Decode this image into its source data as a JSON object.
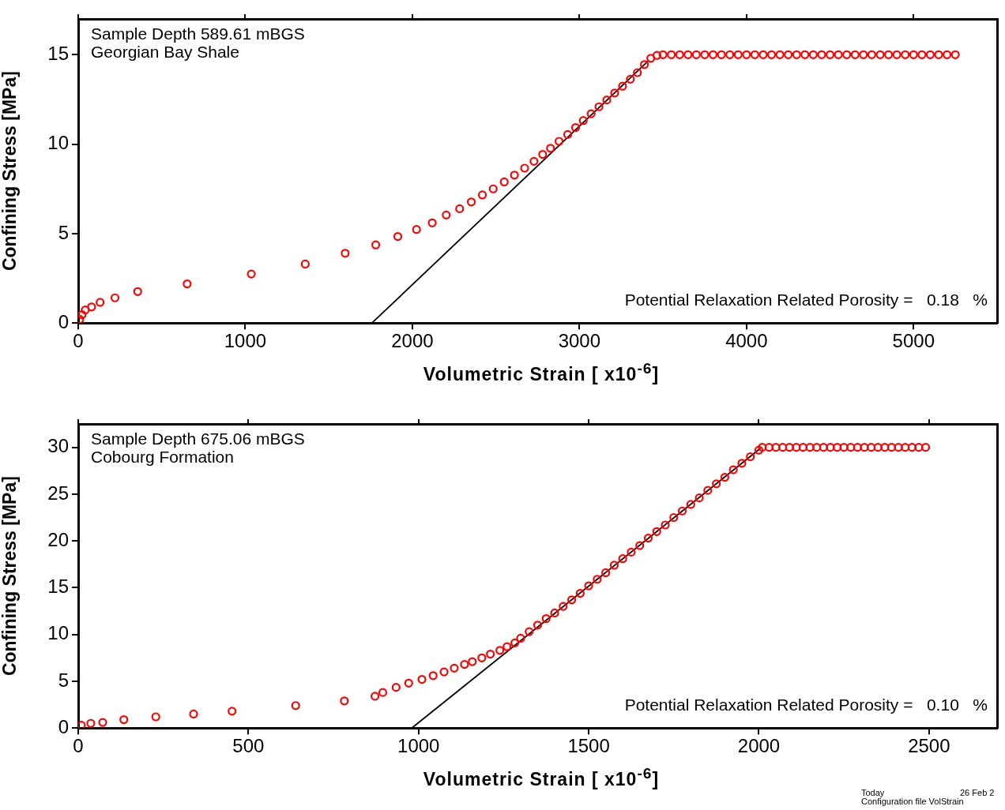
{
  "chart_data": [
    {
      "type": "scatter",
      "xlabel": "Volumetric Strain [ x10$^{-6}$]",
      "ylabel": "Confining Stress [MPa]",
      "xlim": [
        0,
        5500
      ],
      "ylim": [
        0,
        17
      ],
      "xticks": [
        0,
        1000,
        2000,
        3000,
        4000,
        5000
      ],
      "yticks": [
        0,
        5,
        10,
        15
      ],
      "grid": false,
      "annotations": [
        "Sample Depth 589.61 mBGS",
        "Georgian Bay Shale",
        "Potential Relaxation Related Porosity =   0.18   %"
      ],
      "series": [
        {
          "marker": "circle",
          "color": "#ff0000",
          "x": [
            9,
            23,
            42,
            80,
            131,
            220,
            356,
            652,
            1036,
            1359,
            1598,
            1781,
            1913,
            2025,
            2119,
            2203,
            2283,
            2353,
            2419,
            2484,
            2550,
            2611,
            2672,
            2728,
            2780,
            2827,
            2878,
            2930,
            2977,
            3023,
            3070,
            3117,
            3164,
            3211,
            3258,
            3305,
            3347,
            3389,
            3427,
            3464,
            3500,
            3550,
            3600,
            3650,
            3700,
            3750,
            3800,
            3850,
            3900,
            3950,
            4000,
            4050,
            4100,
            4150,
            4200,
            4250,
            4300,
            4350,
            4400,
            4450,
            4500,
            4550,
            4600,
            4650,
            4700,
            4750,
            4800,
            4850,
            4900,
            4950,
            5000,
            5050,
            5100,
            5150,
            5200,
            5250
          ],
          "values": [
            0.21,
            0.47,
            0.73,
            0.9,
            1.16,
            1.41,
            1.76,
            2.19,
            2.74,
            3.3,
            3.9,
            4.37,
            4.84,
            5.23,
            5.6,
            6.04,
            6.39,
            6.77,
            7.16,
            7.5,
            7.89,
            8.27,
            8.66,
            9.04,
            9.43,
            9.77,
            10.16,
            10.54,
            10.93,
            11.32,
            11.7,
            12.09,
            12.47,
            12.86,
            13.24,
            13.63,
            14.0,
            14.45,
            14.8,
            14.96,
            15,
            15,
            15,
            15,
            15,
            15,
            15,
            15,
            15,
            15,
            15,
            15,
            15,
            15,
            15,
            15,
            15,
            15,
            15,
            15,
            15,
            15,
            15,
            15,
            15,
            15,
            15,
            15,
            15,
            15,
            15,
            15,
            15,
            15,
            15,
            15
          ]
        },
        {
          "type": "line",
          "marker": "none",
          "color": "#000000",
          "x": [
            1758,
            3417
          ],
          "values": [
            0,
            14.7
          ]
        }
      ]
    },
    {
      "type": "scatter",
      "xlabel": "Volumetric Strain [ x10$^{-6}$]",
      "ylabel": "Confining Stress [MPa]",
      "xlim": [
        0,
        2700
      ],
      "ylim": [
        0,
        32.5
      ],
      "xticks": [
        0,
        500,
        1000,
        1500,
        2000,
        2500
      ],
      "yticks": [
        0,
        5,
        10,
        15,
        20,
        25,
        30
      ],
      "grid": false,
      "annotations": [
        "Sample Depth 675.06 mBGS",
        "Cobourg Formation",
        "Potential Relaxation Related Porosity =   0.10   %",
        "Today",
        "26 Feb 2",
        "Configuration file VolStrain"
      ],
      "series": [
        {
          "marker": "circle",
          "color": "#ff0000",
          "x": [
            9,
            37,
            72,
            134,
            228,
            339,
            452,
            639,
            782,
            872,
            895,
            934,
            971,
            1010,
            1043,
            1075,
            1105,
            1135,
            1158,
            1186,
            1211,
            1239,
            1260,
            1283,
            1300,
            1325,
            1350,
            1375,
            1400,
            1425,
            1450,
            1475,
            1500,
            1525,
            1550,
            1575,
            1600,
            1625,
            1650,
            1675,
            1700,
            1725,
            1750,
            1775,
            1800,
            1825,
            1850,
            1875,
            1900,
            1925,
            1950,
            1975,
            2000,
            2010,
            2030,
            2050,
            2070,
            2090,
            2110,
            2130,
            2150,
            2170,
            2190,
            2210,
            2230,
            2250,
            2270,
            2290,
            2310,
            2330,
            2350,
            2370,
            2390,
            2410,
            2430,
            2450,
            2470,
            2490
          ],
          "values": [
            0.3,
            0.5,
            0.6,
            0.9,
            1.2,
            1.5,
            1.8,
            2.4,
            2.9,
            3.4,
            3.8,
            4.35,
            4.8,
            5.2,
            5.6,
            6.0,
            6.4,
            6.8,
            7.1,
            7.5,
            7.9,
            8.3,
            8.7,
            9.1,
            9.6,
            10.3,
            11.0,
            11.7,
            12.3,
            13.0,
            13.7,
            14.4,
            15.2,
            15.9,
            16.6,
            17.4,
            18.1,
            18.8,
            19.5,
            20.3,
            21.0,
            21.7,
            22.5,
            23.2,
            23.9,
            24.6,
            25.4,
            26.1,
            26.8,
            27.6,
            28.3,
            29.0,
            29.7,
            30,
            30,
            30,
            30,
            30,
            30,
            30,
            30,
            30,
            30,
            30,
            30,
            30,
            30,
            30,
            30,
            30,
            30,
            30,
            30,
            30,
            30,
            30,
            30,
            30
          ]
        },
        {
          "type": "line",
          "marker": "none",
          "color": "#000000",
          "x": [
            980,
            2005
          ],
          "values": [
            0,
            29.9
          ]
        }
      ]
    }
  ]
}
